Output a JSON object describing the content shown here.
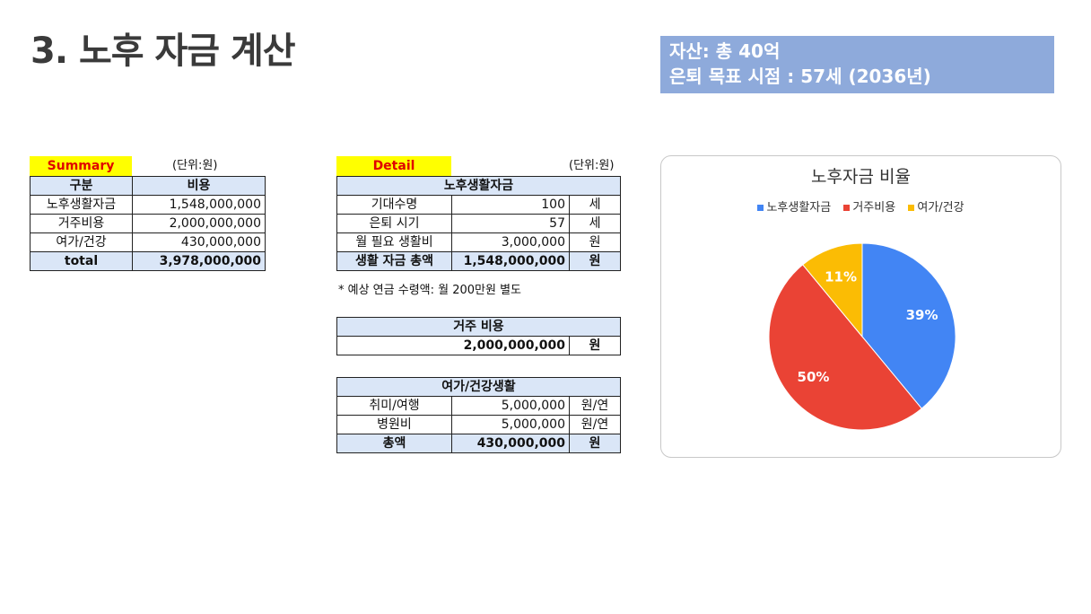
{
  "page": {
    "title": "3. 노후 자금 계산",
    "info_line1": "자산: 총 40억",
    "info_line2": "은퇴 목표 시점 : 57세 (2036년)"
  },
  "summary": {
    "label": "Summary",
    "unit": "(단위:원)",
    "headers": [
      "구분",
      "비용"
    ],
    "rows": [
      [
        "노후생활자금",
        "1,548,000,000"
      ],
      [
        "거주비용",
        "2,000,000,000"
      ],
      [
        "여가/건강",
        "430,000,000"
      ]
    ],
    "total": [
      "total",
      "3,978,000,000"
    ]
  },
  "detail": {
    "label": "Detail",
    "unit": "(단위:원)",
    "living": {
      "header": "노후생활자금",
      "rows": [
        [
          "기대수명",
          "100",
          "세"
        ],
        [
          "은퇴 시기",
          "57",
          "세"
        ],
        [
          "월 필요 생활비",
          "3,000,000",
          "원"
        ]
      ],
      "total": [
        "생활 자금 총액",
        "1,548,000,000",
        "원"
      ],
      "note": "* 예상 연금 수령액: 월 200만원 별도"
    },
    "housing": {
      "header": "거주 비용",
      "value": "2,000,000,000",
      "unit": "원"
    },
    "leisure": {
      "header": "여가/건강생활",
      "rows": [
        [
          "취미/여행",
          "5,000,000",
          "원/연"
        ],
        [
          "병원비",
          "5,000,000",
          "원/연"
        ]
      ],
      "total": [
        "총액",
        "430,000,000",
        "원"
      ]
    }
  },
  "chart_data": {
    "type": "pie",
    "title": "노후자금 비율",
    "legend_position": "top",
    "categories": [
      "노후생활자금",
      "거주비용",
      "여가/건강"
    ],
    "values": [
      39,
      50,
      11
    ],
    "labels": [
      "39%",
      "50%",
      "11%"
    ],
    "colors": [
      "#4285f4",
      "#ea4335",
      "#fbbc04"
    ]
  }
}
